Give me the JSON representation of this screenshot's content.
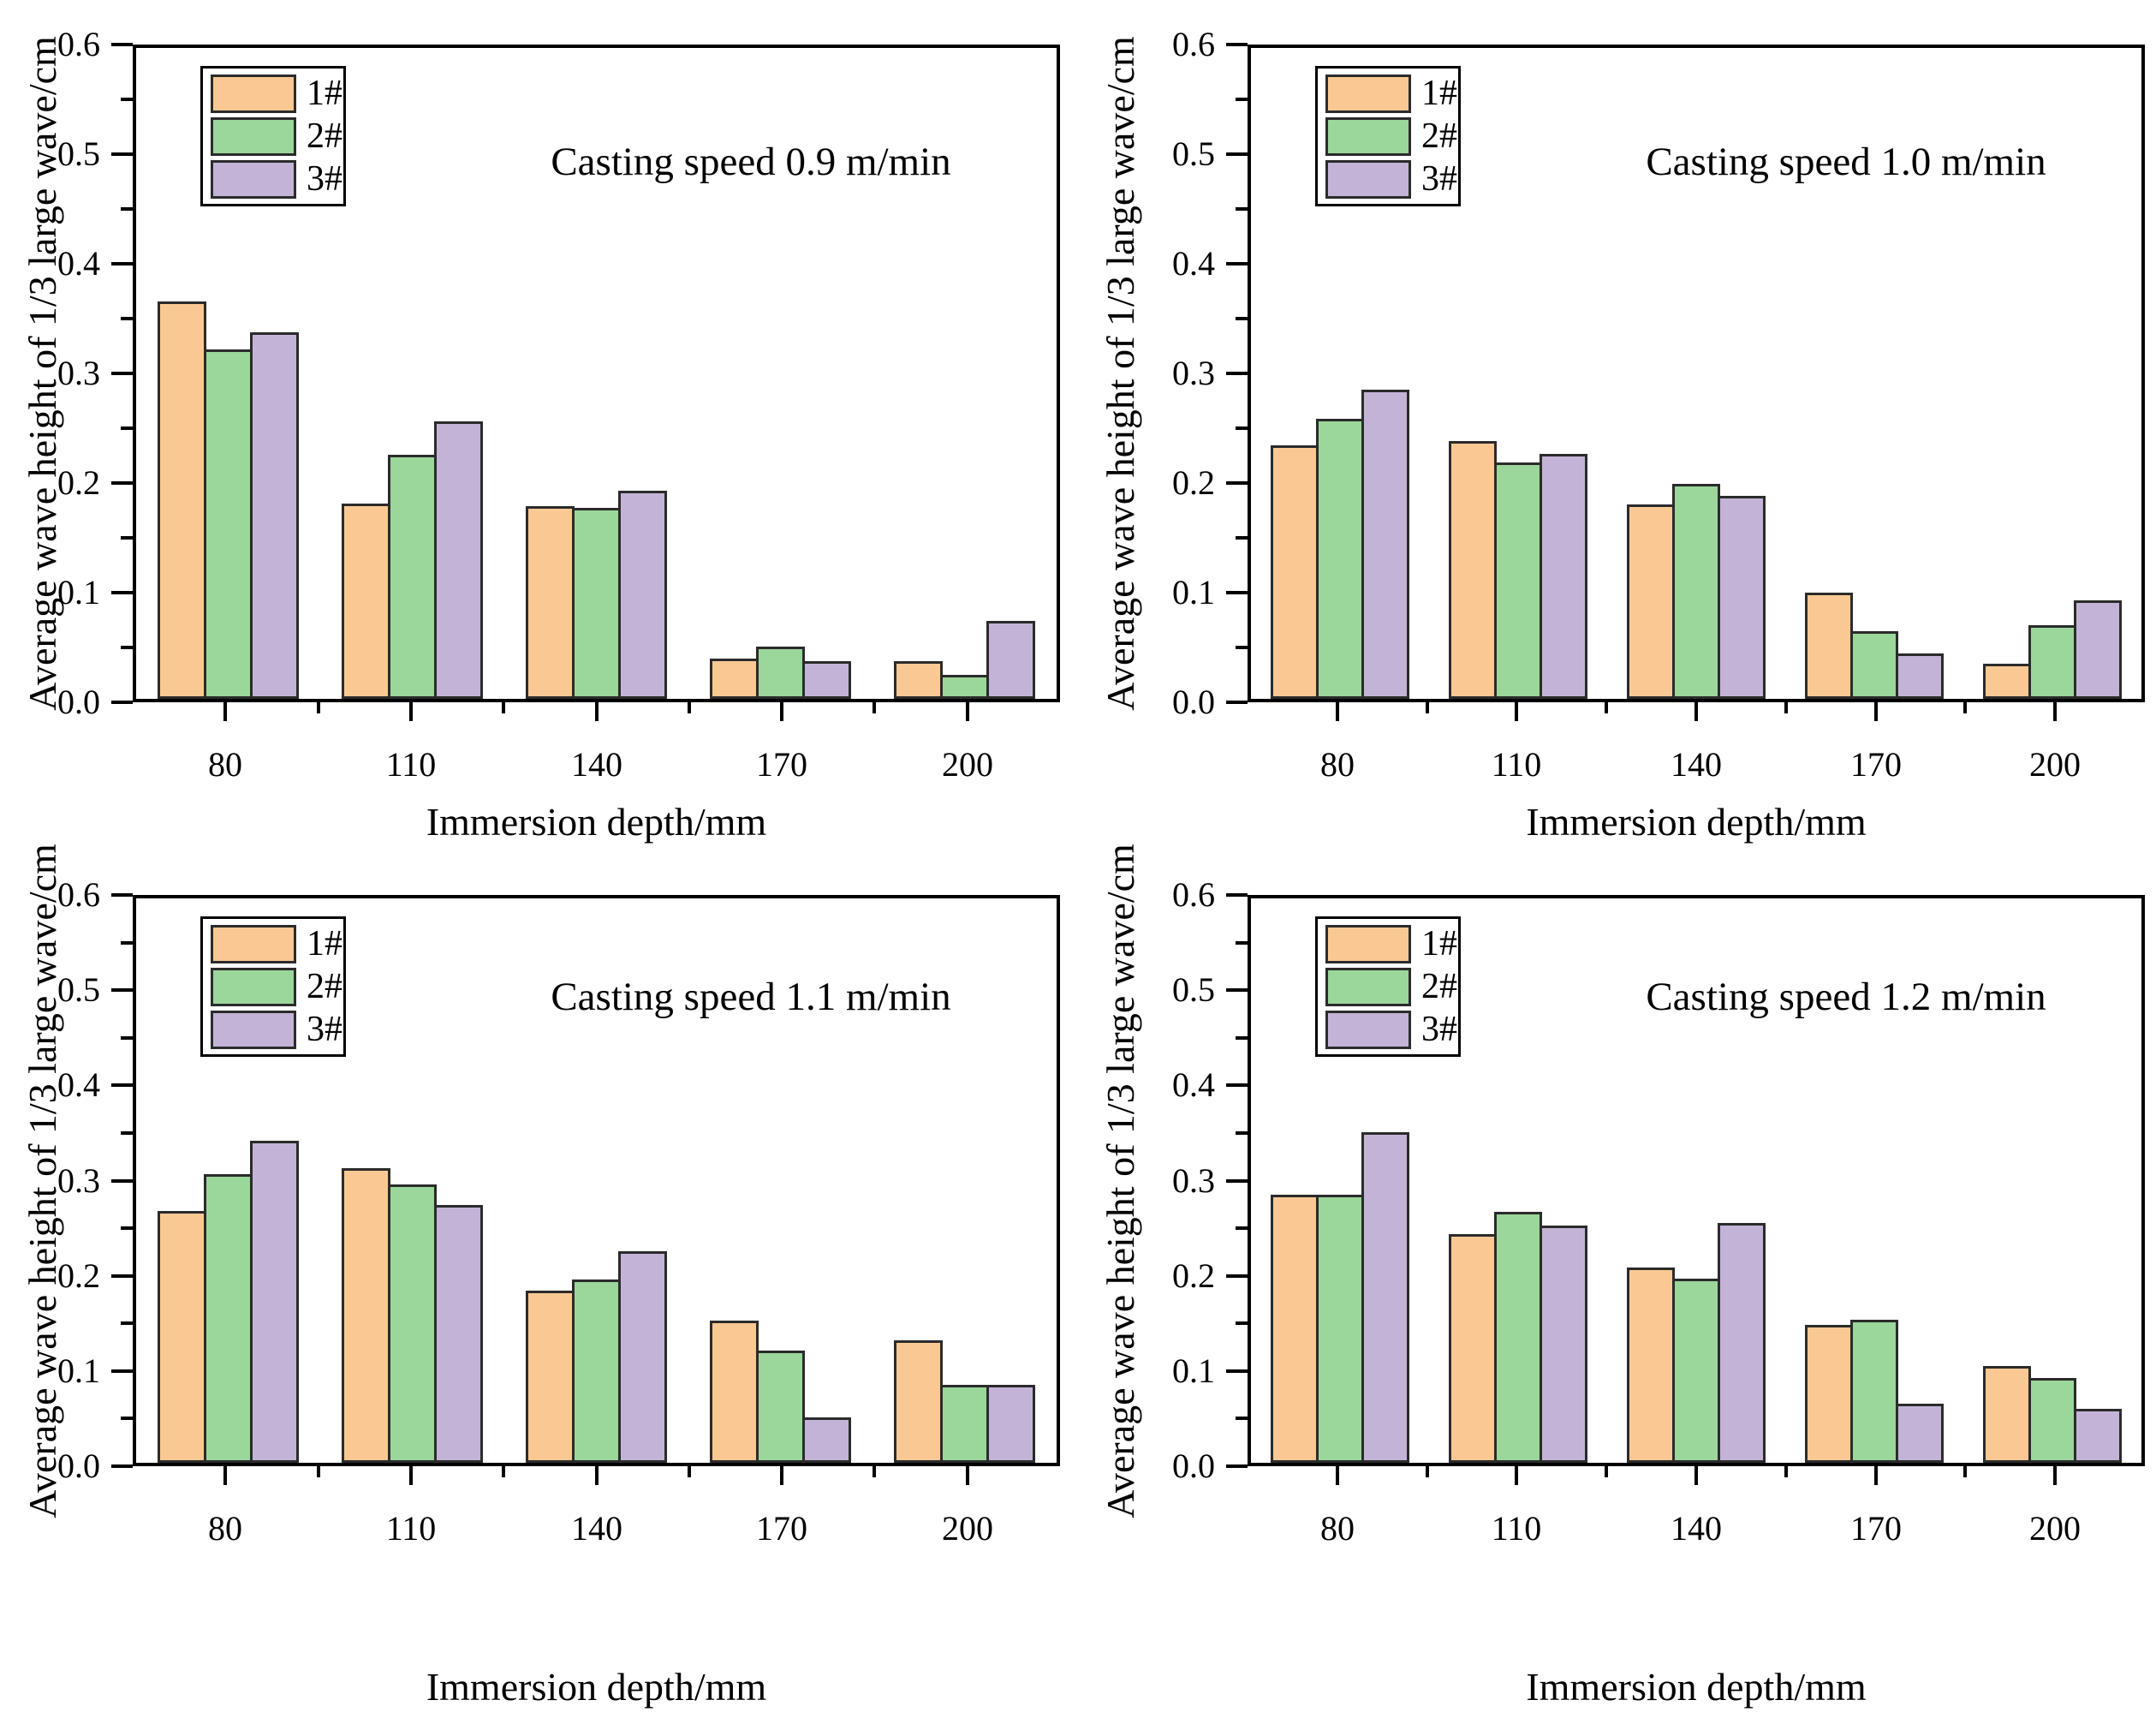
{
  "figure": {
    "ylabel": "Average wave height of 1/3 large wave/cm",
    "xlabel": "Immersion depth/mm",
    "categories": [
      "80",
      "110",
      "140",
      "170",
      "200"
    ],
    "yticks": [
      "0.0",
      "0.1",
      "0.2",
      "0.3",
      "0.4",
      "0.5",
      "0.6"
    ],
    "legend": [
      "1#",
      "2#",
      "3#"
    ],
    "colors": {
      "series_1": "#FAC993",
      "series_2": "#9BD69B",
      "series_3": "#C3B4D7",
      "bar_edge": "#2b2b2b",
      "axis": "#000000"
    }
  },
  "chart_data": [
    {
      "type": "bar",
      "title": "Casting speed 0.9 m/min",
      "xlabel": "Immersion depth/mm",
      "ylabel": "Average wave height of 1/3 large wave/cm",
      "categories": [
        80,
        110,
        140,
        170,
        200
      ],
      "ylim": [
        0,
        0.6
      ],
      "grid": false,
      "legend_position": "top-left",
      "series": [
        {
          "name": "1#",
          "values": [
            0.366,
            0.18,
            0.178,
            0.037,
            0.035
          ]
        },
        {
          "name": "2#",
          "values": [
            0.322,
            0.225,
            0.176,
            0.048,
            0.022
          ]
        },
        {
          "name": "3#",
          "values": [
            0.338,
            0.256,
            0.192,
            0.035,
            0.072
          ]
        }
      ]
    },
    {
      "type": "bar",
      "title": "Casting speed 1.0 m/min",
      "xlabel": "Immersion depth/mm",
      "ylabel": "Average wave height of 1/3 large wave/cm",
      "categories": [
        80,
        110,
        140,
        170,
        200
      ],
      "ylim": [
        0,
        0.6
      ],
      "grid": false,
      "legend_position": "top-left",
      "series": [
        {
          "name": "1#",
          "values": [
            0.234,
            0.238,
            0.179,
            0.098,
            0.032
          ]
        },
        {
          "name": "2#",
          "values": [
            0.258,
            0.218,
            0.198,
            0.062,
            0.068
          ]
        },
        {
          "name": "3#",
          "values": [
            0.285,
            0.226,
            0.187,
            0.042,
            0.091
          ]
        }
      ]
    },
    {
      "type": "bar",
      "title": "Casting speed 1.1 m/min",
      "xlabel": "Immersion depth/mm",
      "ylabel": "Average wave height of 1/3 large wave/cm",
      "categories": [
        80,
        110,
        140,
        170,
        200
      ],
      "ylim": [
        0,
        0.6
      ],
      "grid": false,
      "legend_position": "top-left",
      "series": [
        {
          "name": "1#",
          "values": [
            0.268,
            0.313,
            0.183,
            0.151,
            0.13
          ]
        },
        {
          "name": "2#",
          "values": [
            0.307,
            0.296,
            0.195,
            0.119,
            0.083
          ]
        },
        {
          "name": "3#",
          "values": [
            0.342,
            0.274,
            0.225,
            0.048,
            0.083
          ]
        }
      ]
    },
    {
      "type": "bar",
      "title": "Casting speed 1.2 m/min",
      "xlabel": "Immersion depth/mm",
      "ylabel": "Average wave height of 1/3 large wave/cm",
      "categories": [
        80,
        110,
        140,
        170,
        200
      ],
      "ylim": [
        0,
        0.6
      ],
      "grid": false,
      "legend_position": "top-left",
      "series": [
        {
          "name": "1#",
          "values": [
            0.285,
            0.243,
            0.208,
            0.147,
            0.103
          ]
        },
        {
          "name": "2#",
          "values": [
            0.285,
            0.267,
            0.196,
            0.152,
            0.09
          ]
        },
        {
          "name": "3#",
          "values": [
            0.351,
            0.252,
            0.255,
            0.063,
            0.057
          ]
        }
      ]
    }
  ]
}
